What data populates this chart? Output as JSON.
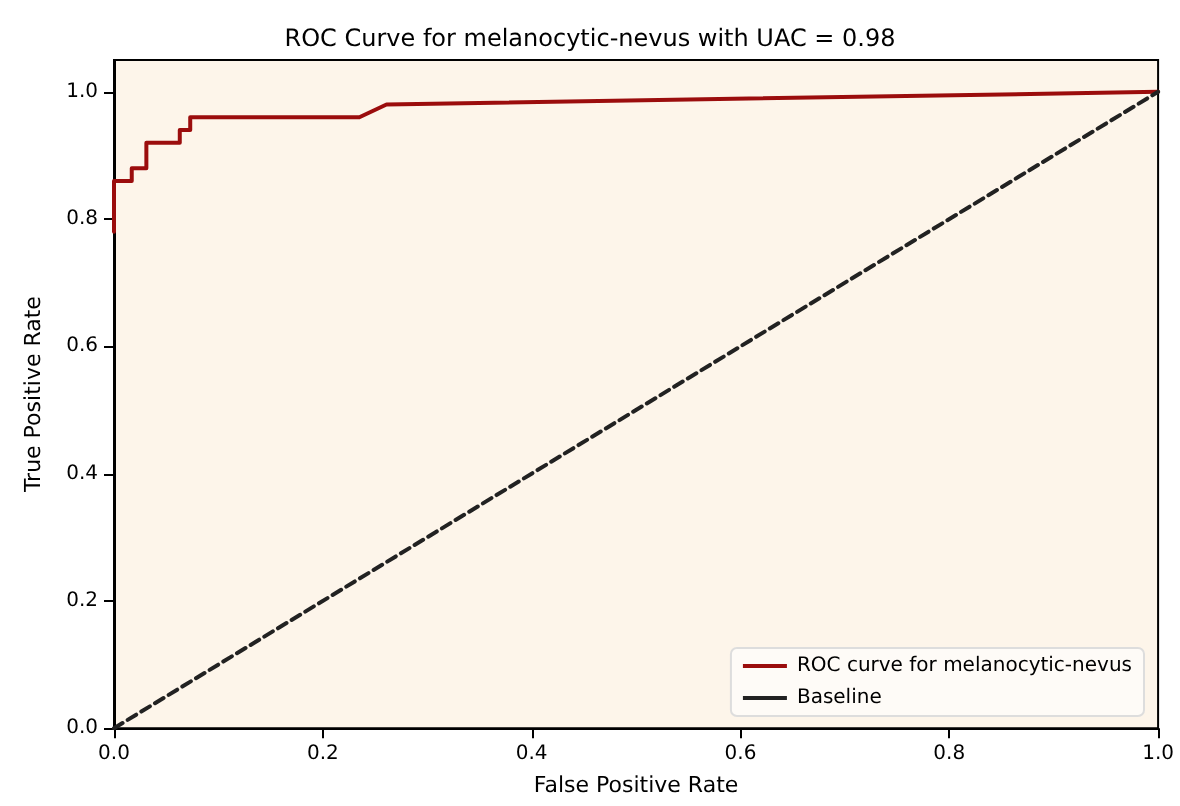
{
  "chart_data": {
    "type": "line",
    "title": "ROC Curve for melanocytic-nevus with UAC = 0.98",
    "xlabel": "False Positive Rate",
    "ylabel": "True Positive Rate",
    "xlim": [
      0,
      1
    ],
    "ylim": [
      0,
      1.05
    ],
    "xticks": [
      {
        "value": 0,
        "label": "0.0"
      },
      {
        "value": 0.2,
        "label": "0.2"
      },
      {
        "value": 0.4,
        "label": "0.4"
      },
      {
        "value": 0.6,
        "label": "0.6"
      },
      {
        "value": 0.8,
        "label": "0.8"
      },
      {
        "value": 1,
        "label": "1.0"
      }
    ],
    "yticks": [
      {
        "value": 0,
        "label": "0.0"
      },
      {
        "value": 0.2,
        "label": "0.2"
      },
      {
        "value": 0.4,
        "label": "0.4"
      },
      {
        "value": 0.6,
        "label": "0.6"
      },
      {
        "value": 0.8,
        "label": "0.8"
      },
      {
        "value": 1,
        "label": "1.0"
      }
    ],
    "legend": "bottom right",
    "grid": false,
    "series": [
      {
        "name": "ROC curve for melanocytic-nevus",
        "color": "#9b0d0d",
        "line_style": "solid",
        "x": [
          0,
          0,
          0.017,
          0.017,
          0.031,
          0.031,
          0.063,
          0.063,
          0.073,
          0.073,
          0.235,
          0.261,
          1
        ],
        "values": [
          0.78,
          0.86,
          0.86,
          0.88,
          0.88,
          0.92,
          0.92,
          0.94,
          0.94,
          0.96,
          0.96,
          0.98,
          1.0
        ]
      },
      {
        "name": "Baseline",
        "color": "#222222",
        "line_style": "dashed",
        "x": [
          0,
          1
        ],
        "values": [
          0,
          1
        ]
      }
    ]
  }
}
